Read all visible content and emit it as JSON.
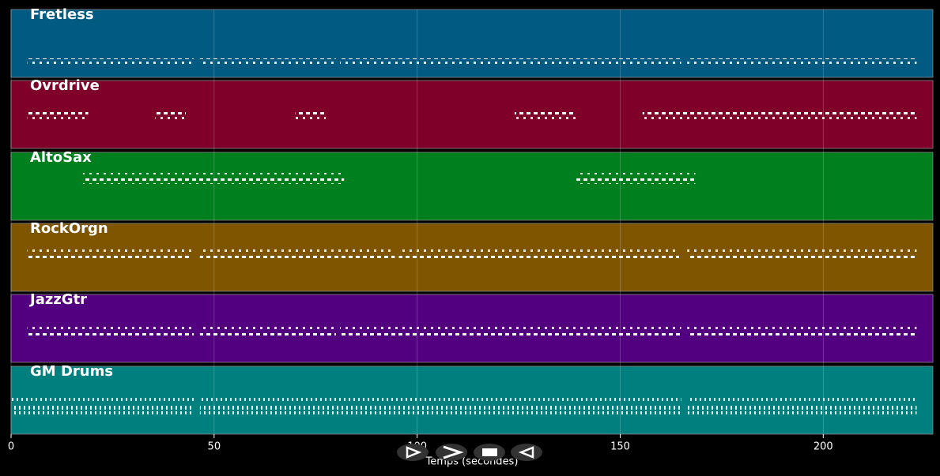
{
  "chart_data": {
    "type": "piano-roll",
    "x_label": "Temps (secondes)",
    "xlim": [
      0,
      227
    ],
    "xticks": [
      0,
      50,
      100,
      150,
      200
    ],
    "grid": true,
    "tracks": [
      {
        "name": "Fretless",
        "color": "#005a82",
        "segments": [
          [
            4,
            45
          ],
          [
            46.5,
            80
          ],
          [
            81,
            165
          ],
          [
            166.5,
            223
          ]
        ]
      },
      {
        "name": "Ovrdrive",
        "color": "#7f0029",
        "segments": [
          [
            4,
            19
          ],
          [
            35.5,
            43
          ],
          [
            70,
            77.5
          ],
          [
            124,
            139
          ],
          [
            155.5,
            223
          ]
        ]
      },
      {
        "name": "AltoSax",
        "color": "#007f1f",
        "segments": [
          [
            17.7,
            82
          ],
          [
            139,
            168.5
          ]
        ]
      },
      {
        "name": "RockOrgn",
        "color": "#7f5500",
        "segments": [
          [
            4,
            44.5
          ],
          [
            46.5,
            94.5
          ],
          [
            95.5,
            164.5
          ],
          [
            166.5,
            223
          ]
        ]
      },
      {
        "name": "JazzGtr",
        "color": "#52007f",
        "segments": [
          [
            4,
            45
          ],
          [
            46.5,
            80
          ],
          [
            81,
            165
          ],
          [
            166.5,
            223
          ]
        ]
      },
      {
        "name": "GM Drums",
        "color": "#007f7f",
        "segments": [
          [
            0,
            45
          ],
          [
            46.5,
            165
          ],
          [
            166.5,
            223
          ]
        ]
      }
    ]
  }
}
